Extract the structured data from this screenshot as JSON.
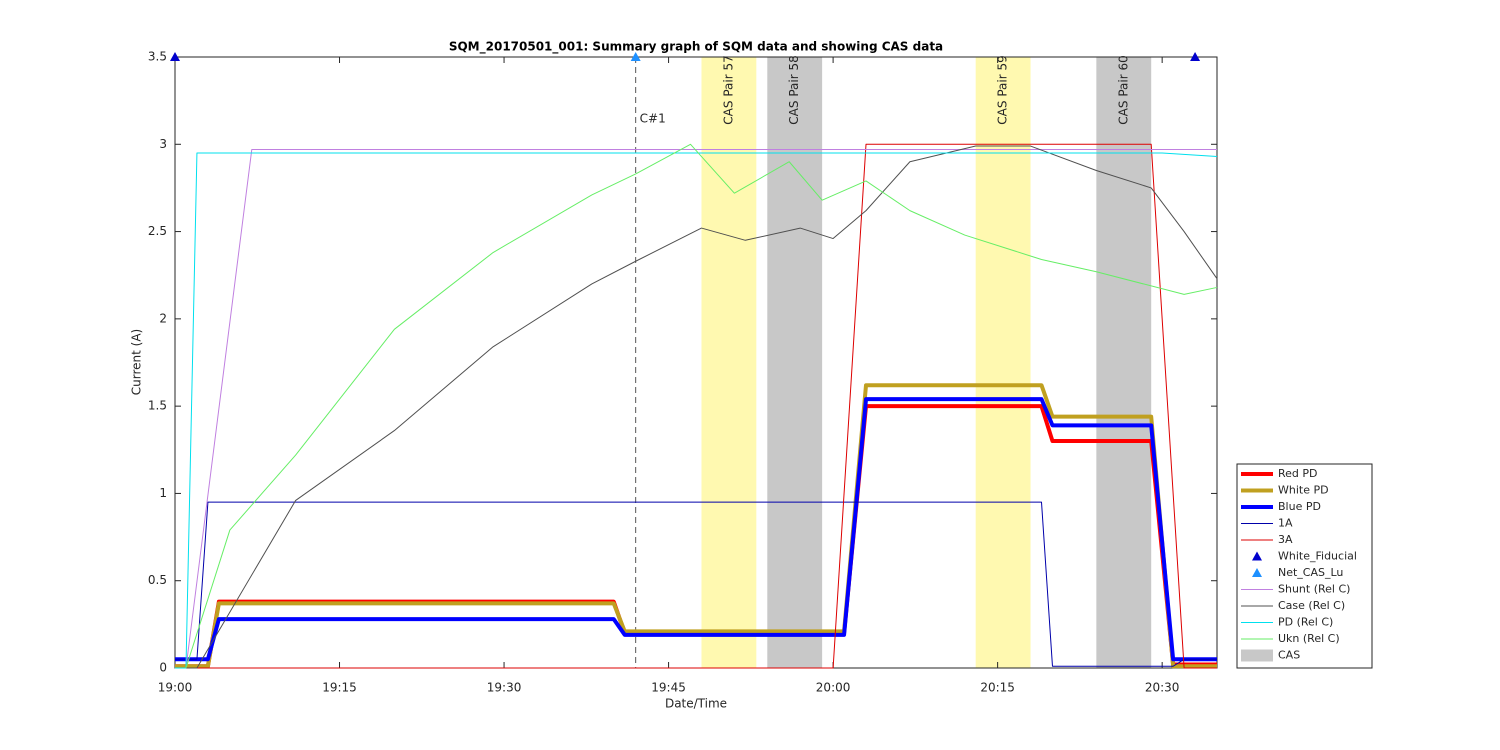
{
  "chart_data": {
    "type": "line",
    "title": "SQM_20170501_001: Summary graph of SQM data and showing CAS data",
    "x_label": "Date/Time",
    "y_label": "Current (A)",
    "xlim": [
      "19:00",
      "20:35"
    ],
    "xticks": [
      "19:00",
      "19:15",
      "19:30",
      "19:45",
      "20:00",
      "20:15",
      "20:30"
    ],
    "ylim": [
      0,
      3.5
    ],
    "yticks": [
      0,
      0.5,
      1,
      1.5,
      2,
      2.5,
      3,
      3.5
    ],
    "cas_bands": [
      {
        "label": "CAS Pair 57",
        "start": "19:48",
        "end": "19:53",
        "color": "#fff9b0"
      },
      {
        "label": "CAS Pair 58",
        "start": "19:54",
        "end": "19:59",
        "color": "#c8c8c8"
      },
      {
        "label": "CAS Pair 59",
        "start": "20:13",
        "end": "20:18",
        "color": "#fff9b0"
      },
      {
        "label": "CAS Pair 60",
        "start": "20:24",
        "end": "20:29",
        "color": "#c8c8c8"
      }
    ],
    "cas_legend": {
      "name": "CAS",
      "color": "#c8c8c8"
    },
    "vline": {
      "x": "19:42",
      "label": "C#1"
    },
    "series": [
      {
        "name": "Red PD",
        "color": "#ff0000",
        "width": 4,
        "x": [
          "19:00",
          "19:03",
          "19:04",
          "19:40",
          "19:41",
          "20:01",
          "20:03",
          "20:19",
          "20:20",
          "20:29",
          "20:31",
          "20:35"
        ],
        "values": [
          0.01,
          0.01,
          0.38,
          0.38,
          0.2,
          0.2,
          1.5,
          1.5,
          1.3,
          1.3,
          0.02,
          0.02
        ]
      },
      {
        "name": "White PD",
        "color": "#c0a020",
        "width": 4,
        "x": [
          "19:00",
          "19:03",
          "19:04",
          "19:40",
          "19:41",
          "20:01",
          "20:03",
          "20:19",
          "20:20",
          "20:29",
          "20:31",
          "20:35"
        ],
        "values": [
          0.01,
          0.01,
          0.37,
          0.37,
          0.21,
          0.21,
          1.62,
          1.62,
          1.44,
          1.44,
          0.01,
          0.01
        ]
      },
      {
        "name": "Blue PD",
        "color": "#0000ff",
        "width": 4,
        "x": [
          "19:00",
          "19:03",
          "19:04",
          "19:40",
          "19:41",
          "20:01",
          "20:03",
          "20:19",
          "20:20",
          "20:29",
          "20:31",
          "20:35"
        ],
        "values": [
          0.05,
          0.05,
          0.28,
          0.28,
          0.19,
          0.19,
          1.54,
          1.54,
          1.39,
          1.39,
          0.05,
          0.05
        ]
      },
      {
        "name": "1A",
        "color": "#0000aa",
        "width": 1,
        "x": [
          "19:00",
          "19:02",
          "19:03",
          "20:19",
          "20:20",
          "20:31",
          "20:32",
          "20:35"
        ],
        "values": [
          0.05,
          0.05,
          0.95,
          0.95,
          0.01,
          0.01,
          0.05,
          0.05
        ]
      },
      {
        "name": "3A",
        "color": "#dd0000",
        "width": 1,
        "x": [
          "19:00",
          "20:00",
          "20:03",
          "20:29",
          "20:32",
          "20:35"
        ],
        "values": [
          0,
          0,
          3,
          3,
          0,
          0
        ]
      },
      {
        "name": "White_Fiducial",
        "color": "#0000cc",
        "marker": "triangle",
        "x": [
          "19:00",
          "20:33"
        ],
        "values": [
          3.5,
          3.5
        ]
      },
      {
        "name": "Net_CAS_Lu",
        "color": "#1e90ff",
        "marker": "triangle",
        "x": [
          "19:42"
        ],
        "values": [
          3.5
        ]
      },
      {
        "name": "Shunt (Rel C)",
        "color": "#c080e0",
        "width": 1,
        "x": [
          "19:01",
          "19:07",
          "19:20",
          "19:40",
          "20:00",
          "20:20",
          "20:35"
        ],
        "values": [
          0,
          2.97,
          2.97,
          2.97,
          2.97,
          2.97,
          2.97
        ]
      },
      {
        "name": "Case (Rel C)",
        "color": "#505050",
        "width": 1,
        "x": [
          "19:00",
          "19:02",
          "19:11",
          "19:20",
          "19:29",
          "19:38",
          "19:42",
          "19:48",
          "19:52",
          "19:57",
          "20:00",
          "20:03",
          "20:07",
          "20:13",
          "20:18",
          "20:24",
          "20:29",
          "20:32",
          "20:35"
        ],
        "values": [
          0,
          0,
          0.96,
          1.36,
          1.84,
          2.2,
          2.33,
          2.52,
          2.45,
          2.52,
          2.46,
          2.62,
          2.9,
          2.99,
          2.99,
          2.85,
          2.75,
          2.5,
          2.23
        ]
      },
      {
        "name": "PD (Rel C)",
        "color": "#00e0ee",
        "width": 1,
        "x": [
          "19:00",
          "19:01",
          "19:02",
          "19:15",
          "19:30",
          "19:45",
          "20:00",
          "20:15",
          "20:30",
          "20:35"
        ],
        "values": [
          0,
          0,
          2.95,
          2.95,
          2.95,
          2.95,
          2.95,
          2.95,
          2.95,
          2.93
        ]
      },
      {
        "name": "Ukn (Rel C)",
        "color": "#66ee66",
        "width": 1,
        "x": [
          "19:01",
          "19:05",
          "19:11",
          "19:20",
          "19:29",
          "19:38",
          "19:42",
          "19:47",
          "19:51",
          "19:56",
          "19:59",
          "20:03",
          "20:07",
          "20:12",
          "20:19",
          "20:24",
          "20:32",
          "20:35"
        ],
        "values": [
          0,
          0.79,
          1.22,
          1.94,
          2.38,
          2.71,
          2.83,
          3.0,
          2.72,
          2.9,
          2.68,
          2.79,
          2.62,
          2.48,
          2.34,
          2.27,
          2.14,
          2.18
        ]
      }
    ]
  }
}
